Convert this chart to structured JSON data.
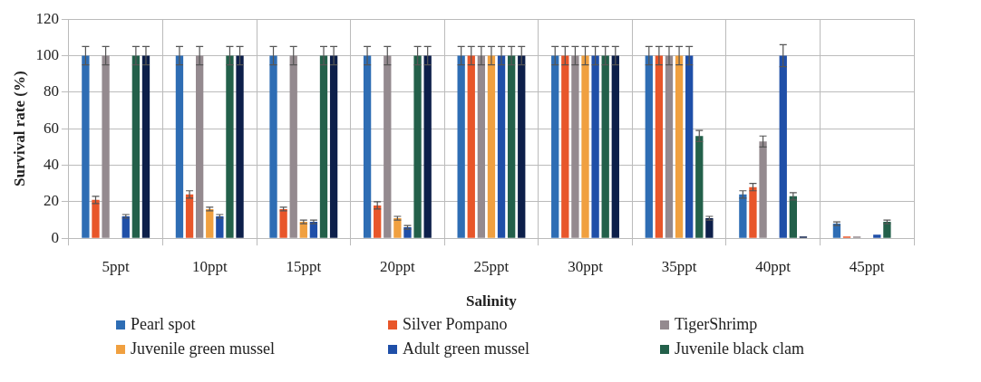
{
  "chart_data": {
    "type": "bar",
    "xlabel": "Salinity",
    "ylabel": "Survival rate (%)",
    "categories": [
      "5ppt",
      "10ppt",
      "15ppt",
      "20ppt",
      "25ppt",
      "30ppt",
      "35ppt",
      "40ppt",
      "45ppt"
    ],
    "series": [
      {
        "name": "Pearl spot",
        "color": "#2e6db4",
        "values": [
          100,
          100,
          100,
          100,
          100,
          100,
          100,
          24,
          8
        ],
        "errors": [
          5,
          5,
          5,
          5,
          5,
          5,
          5,
          2,
          1
        ]
      },
      {
        "name": "Silver Pompano",
        "color": "#e8562a",
        "values": [
          21,
          24,
          16,
          18,
          100,
          100,
          100,
          28,
          1
        ],
        "errors": [
          2,
          2,
          1,
          2,
          5,
          5,
          5,
          2,
          null
        ]
      },
      {
        "name": "TigerShrimp",
        "color": "#948a8f",
        "values": [
          100,
          100,
          100,
          100,
          100,
          100,
          100,
          53,
          1
        ],
        "errors": [
          5,
          5,
          5,
          5,
          5,
          5,
          5,
          3,
          null
        ]
      },
      {
        "name": "Juvenile green mussel",
        "color": "#f0a040",
        "values": [
          0,
          16,
          9,
          11,
          100,
          100,
          100,
          0,
          0
        ],
        "errors": [
          null,
          1,
          1,
          1,
          5,
          5,
          5,
          null,
          null
        ]
      },
      {
        "name": "Adult green mussel",
        "color": "#1f4fa8",
        "values": [
          12,
          12,
          9,
          6,
          100,
          100,
          100,
          100,
          2
        ],
        "errors": [
          1,
          1,
          1,
          1,
          5,
          5,
          5,
          6,
          null
        ]
      },
      {
        "name": "Juvenile black clam",
        "color": "#23604a",
        "values": [
          100,
          100,
          100,
          100,
          100,
          100,
          56,
          23,
          9
        ],
        "errors": [
          5,
          5,
          5,
          5,
          5,
          5,
          3,
          2,
          1
        ]
      },
      {
        "color": "#0d1f4a",
        "values": [
          100,
          100,
          100,
          100,
          100,
          100,
          11,
          1,
          0
        ],
        "errors": [
          5,
          5,
          5,
          5,
          5,
          5,
          1,
          null,
          null
        ]
      }
    ],
    "ylim": [
      0,
      120
    ],
    "yticks": [
      0,
      20,
      40,
      60,
      80,
      100,
      120
    ],
    "grid": true,
    "legend": "bottom"
  }
}
